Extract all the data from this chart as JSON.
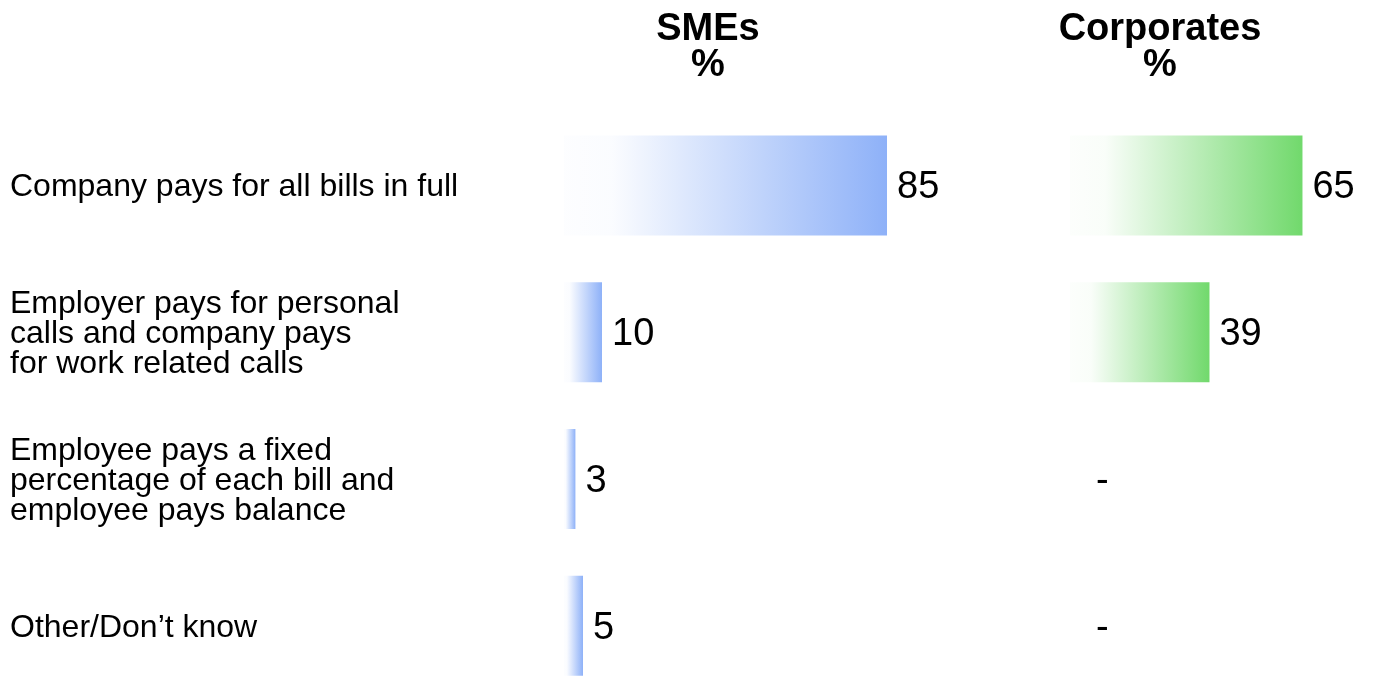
{
  "chart_data": [
    {
      "type": "bar",
      "orientation": "horizontal",
      "title": "SMEs\n%",
      "categories": [
        "Company pays for all bills in full",
        "Employer pays for personal\ncalls and company pays\nfor work related calls",
        "Employee pays a fixed\npercentage of each bill and\nemployee pays balance",
        "Other/Don’t know"
      ],
      "values": [
        85,
        10,
        3,
        5
      ],
      "color": "#8eb1f8",
      "data_labels": true,
      "tick_labels": "y"
    },
    {
      "type": "bar",
      "orientation": "horizontal",
      "title": "Corporates\n%",
      "categories": [
        null,
        null,
        null,
        null
      ],
      "values": [
        65,
        39,
        null,
        null
      ],
      "value_labels": [
        "65",
        "39",
        "-",
        "-"
      ],
      "color": "#71d96c",
      "tick_labels": false
    }
  ]
}
